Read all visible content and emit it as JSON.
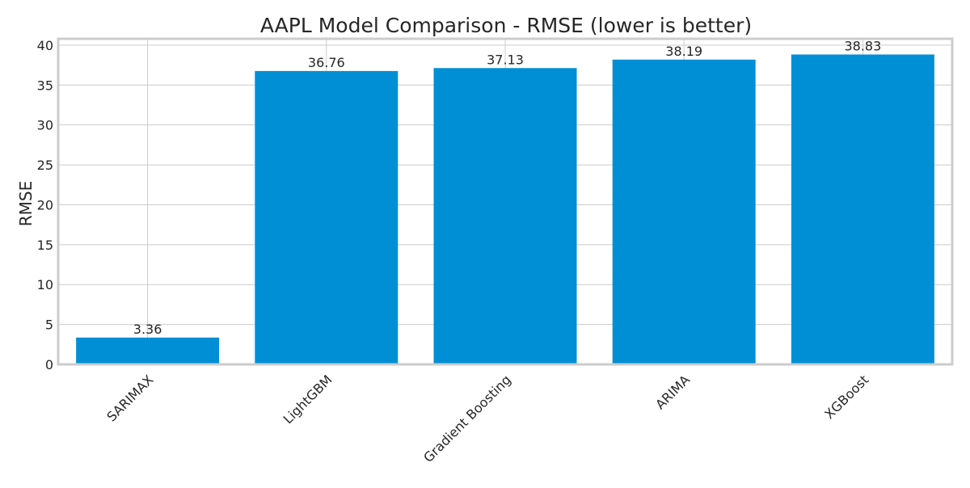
{
  "chart_data": {
    "type": "bar",
    "title": "AAPL Model Comparison - RMSE (lower is better)",
    "xlabel": "",
    "ylabel": "RMSE",
    "categories": [
      "SARIMAX",
      "LightGBM",
      "Gradient Boosting",
      "ARIMA",
      "XGBoost"
    ],
    "values": [
      3.36,
      36.76,
      37.13,
      38.19,
      38.83
    ],
    "value_labels": [
      "3.36",
      "36.76",
      "37.13",
      "38.19",
      "38.83"
    ],
    "ylim": [
      0,
      40.8
    ],
    "yticks": [
      0,
      5,
      10,
      15,
      20,
      25,
      30,
      35,
      40
    ],
    "grid": true,
    "legend": "none",
    "bar_color": "#008fd5",
    "x_tick_rotation_deg": -45
  }
}
